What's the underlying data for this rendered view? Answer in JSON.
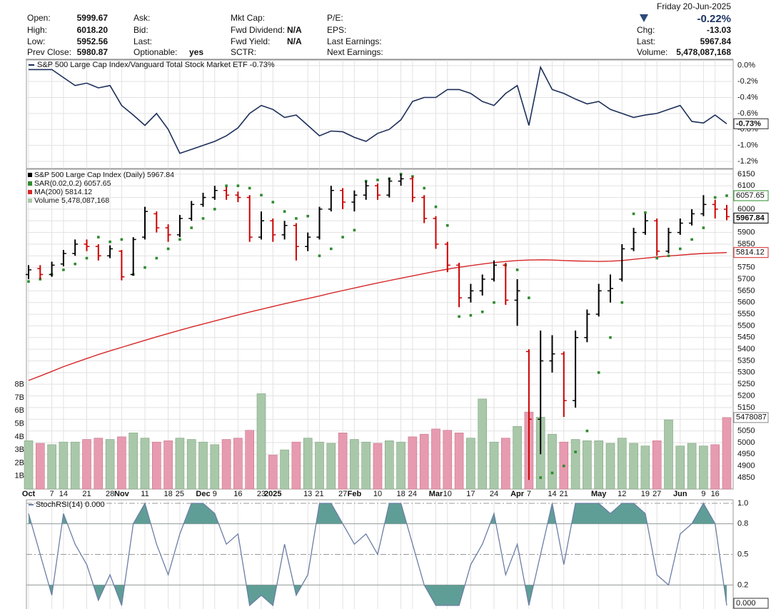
{
  "quote": {
    "columns": [
      [
        {
          "label": "Open:",
          "value": "5999.67"
        },
        {
          "label": "High:",
          "value": "6018.20"
        },
        {
          "label": "Low:",
          "value": "5952.56"
        },
        {
          "label": "Prev Close:",
          "value": "5980.87"
        }
      ],
      [
        {
          "label": "Ask:"
        },
        {
          "label": "Bid:"
        },
        {
          "label": "Last:"
        },
        {
          "label": "Optionable:",
          "value": "yes"
        }
      ],
      [
        {
          "label": "Mkt Cap:"
        },
        {
          "label": "Fwd Dividend:",
          "value": "N/A"
        },
        {
          "label": "Fwd Yield:",
          "value": "N/A"
        },
        {
          "label": "SCTR:"
        }
      ],
      [
        {
          "label": "P/E:"
        },
        {
          "label": "EPS:"
        },
        {
          "label": "Last Earnings:"
        },
        {
          "label": "Next Earnings:"
        }
      ]
    ],
    "weekday": "Friday",
    "date": "20-Jun-2025",
    "change_pct": "-0.22%",
    "fields": [
      {
        "label": "Chg:",
        "value": "-13.03"
      },
      {
        "label": "Last:",
        "value": "5967.84"
      },
      {
        "label": "Volume:",
        "value": "5,478,087,168"
      }
    ]
  },
  "chart_data": [
    {
      "type": "line",
      "series": [
        {
          "name": "S&P 500 Large Cap Index/Vanguard Total Stock Market ETF -0.73%",
          "color": "#1c2f5a",
          "end_label": "-0.73%",
          "values": [
            -0.05,
            -0.05,
            -0.05,
            -0.15,
            -0.25,
            -0.22,
            -0.28,
            -0.25,
            -0.5,
            -0.62,
            -0.75,
            -0.6,
            -0.8,
            -1.1,
            -1.05,
            -1.0,
            -0.95,
            -0.88,
            -0.78,
            -0.6,
            -0.5,
            -0.55,
            -0.65,
            -0.62,
            -0.75,
            -0.88,
            -0.82,
            -0.83,
            -0.9,
            -0.95,
            -0.85,
            -0.8,
            -0.68,
            -0.45,
            -0.4,
            -0.4,
            -0.3,
            -0.3,
            -0.35,
            -0.45,
            -0.5,
            -0.35,
            -0.25,
            -0.75,
            -0.02,
            -0.3,
            -0.35,
            -0.42,
            -0.48,
            -0.45,
            -0.55,
            -0.6,
            -0.65,
            -0.62,
            -0.6,
            -0.55,
            -0.5,
            -0.7,
            -0.72,
            -0.62,
            -0.73
          ]
        }
      ],
      "ylim": [
        -1.29,
        0.07
      ],
      "yticks": [
        {
          "value": 0,
          "label": "0.0%"
        },
        {
          "value": -0.2,
          "label": "-0.2%"
        },
        {
          "value": -0.4,
          "label": "-0.4%"
        },
        {
          "value": -0.6,
          "label": "-0.6%"
        },
        {
          "value": -0.8,
          "label": "-0.8%"
        },
        {
          "value": -1.0,
          "label": "-1.0%"
        },
        {
          "value": -1.2,
          "label": "-1.2%"
        }
      ],
      "grid": true
    },
    {
      "type": "ohlc",
      "categories": [
        "Oct",
        null,
        "7",
        "14",
        null,
        "21",
        null,
        "28",
        "Nov",
        null,
        "11",
        null,
        "18",
        "25",
        null,
        "Dec",
        "9",
        null,
        "16",
        null,
        "23",
        "2025",
        null,
        null,
        "13",
        "21",
        null,
        "27",
        "Feb",
        null,
        "10",
        null,
        "18",
        "24",
        null,
        "Mar",
        "10",
        null,
        "17",
        null,
        "24",
        null,
        "Apr",
        "7",
        null,
        "14",
        "21",
        null,
        null,
        "May",
        null,
        "12",
        null,
        "19",
        "27",
        null,
        "Jun",
        null,
        "9",
        "16",
        null
      ],
      "series": [
        {
          "name": "S&P 500 Large Cap Index (Daily) 5967.84",
          "type": "ohlc",
          "end_label": "5967.84",
          "colors": {
            "up": "#000000",
            "down": "#cc0000"
          },
          "open": [
            5720,
            5745,
            5720,
            5765,
            5810,
            5850,
            5840,
            5800,
            5820,
            5720,
            5880,
            5980,
            5920,
            5890,
            5960,
            6020,
            6050,
            6080,
            6060,
            6050,
            5880,
            5950,
            5890,
            5930,
            5840,
            5880,
            6000,
            6080,
            6030,
            6060,
            6100,
            6060,
            6120,
            6130,
            6050,
            5960,
            5850,
            5760,
            5620,
            5650,
            5700,
            5760,
            5610,
            5390,
            5100,
            5350,
            5380,
            5180,
            5450,
            5550,
            5650,
            5700,
            5830,
            5900,
            5950,
            5820,
            5900,
            5940,
            5980,
            6020,
            5999.67
          ],
          "high": [
            5760,
            5760,
            5775,
            5825,
            5870,
            5870,
            5850,
            5845,
            5825,
            5880,
            6010,
            5990,
            5935,
            5975,
            6035,
            6070,
            6100,
            6095,
            6075,
            6060,
            5990,
            5960,
            5950,
            5940,
            5900,
            6010,
            6100,
            6090,
            6080,
            6120,
            6110,
            6135,
            6150,
            6140,
            6060,
            5970,
            5860,
            5770,
            5680,
            5720,
            5780,
            5770,
            5700,
            5400,
            5480,
            5460,
            5390,
            5480,
            5570,
            5680,
            5720,
            5850,
            5920,
            5980,
            5960,
            5920,
            5960,
            6000,
            6060,
            6040,
            6018.2
          ],
          "low": [
            5700,
            5700,
            5710,
            5755,
            5800,
            5820,
            5780,
            5790,
            5695,
            5715,
            5870,
            5900,
            5860,
            5880,
            5950,
            6010,
            6040,
            6040,
            6030,
            5860,
            5870,
            5860,
            5870,
            5780,
            5820,
            5870,
            5990,
            6000,
            5990,
            6040,
            6040,
            6050,
            6100,
            6030,
            5940,
            5830,
            5730,
            5580,
            5600,
            5630,
            5690,
            5590,
            5500,
            4840,
            4950,
            5300,
            5110,
            5150,
            5430,
            5540,
            5600,
            5690,
            5820,
            5890,
            5800,
            5810,
            5890,
            5930,
            5970,
            5960,
            5952.56
          ],
          "close": [
            5740,
            5720,
            5760,
            5810,
            5850,
            5840,
            5800,
            5830,
            5710,
            5870,
            5990,
            5920,
            5890,
            5960,
            6020,
            6050,
            6080,
            6060,
            6050,
            5880,
            5950,
            5890,
            5930,
            5840,
            5880,
            6000,
            6080,
            6030,
            6060,
            6100,
            6060,
            6120,
            6130,
            6050,
            5960,
            5850,
            5760,
            5620,
            5650,
            5700,
            5760,
            5610,
            5650,
            5100,
            5350,
            5380,
            5180,
            5450,
            5550,
            5650,
            5660,
            5830,
            5900,
            5950,
            5820,
            5900,
            5940,
            5980,
            6020,
            6000,
            5967.84
          ]
        },
        {
          "name": "SAR(0.02,0.2) 6057.65",
          "type": "dots",
          "color": "#2e8b2e",
          "end_label": "6057.65",
          "values": [
            5690,
            5700,
            5720,
            5740,
            5765,
            5790,
            5880,
            5860,
            5870,
            5720,
            5750,
            5790,
            5830,
            5870,
            5920,
            5960,
            6000,
            6100,
            6100,
            6090,
            6060,
            6030,
            5990,
            5960,
            5970,
            5800,
            5830,
            5880,
            5910,
            6120,
            6125,
            6130,
            6150,
            6140,
            6090,
            6010,
            5930,
            5540,
            5545,
            5560,
            5600,
            5760,
            5740,
            5620,
            4850,
            4870,
            4900,
            4960,
            5050,
            5300,
            5450,
            5600,
            5980,
            5985,
            5790,
            5800,
            5830,
            5870,
            5920,
            6050,
            6057.65
          ]
        },
        {
          "name": "MA(200) 5814.12",
          "type": "line",
          "color": "#d62728",
          "end_label": "5814.12",
          "values": [
            5266,
            5285,
            5305,
            5325,
            5343,
            5360,
            5377,
            5393,
            5408,
            5423,
            5438,
            5453,
            5467,
            5481,
            5495,
            5508,
            5521,
            5534,
            5547,
            5559,
            5571,
            5583,
            5595,
            5606,
            5617,
            5628,
            5640,
            5651,
            5662,
            5673,
            5684,
            5694,
            5704,
            5714,
            5724,
            5734,
            5743,
            5751,
            5758,
            5765,
            5771,
            5776,
            5780,
            5782,
            5783,
            5782,
            5780,
            5778,
            5777,
            5776,
            5777,
            5780,
            5785,
            5790,
            5795,
            5799,
            5803,
            5807,
            5810,
            5812,
            5814.12
          ]
        },
        {
          "name": "Volume 5,478,087,168",
          "type": "bar",
          "axis": "y2",
          "end_label": "5478087",
          "colors": {
            "up": "#a9c8a9",
            "down": "#e79bb0"
          },
          "values": [
            3700000000,
            3500000000,
            3400000000,
            3600000000,
            3600000000,
            3800000000,
            3900000000,
            3800000000,
            4000000000,
            4300000000,
            3900000000,
            3600000000,
            3700000000,
            3900000000,
            3800000000,
            3600000000,
            3400000000,
            3800000000,
            3900000000,
            4500000000,
            7300000000,
            2600000000,
            3000000000,
            3600000000,
            3900000000,
            3600000000,
            3500000000,
            4300000000,
            3800000000,
            3600000000,
            3500000000,
            3700000000,
            3600000000,
            4000000000,
            4200000000,
            4600000000,
            4500000000,
            4300000000,
            3900000000,
            6900000000,
            3600000000,
            3900000000,
            4800000000,
            5900000000,
            5500000000,
            4200000000,
            3600000000,
            3800000000,
            3700000000,
            3700000000,
            3500000000,
            3900000000,
            3500000000,
            3300000000,
            3700000000,
            5300000000,
            3300000000,
            3500000000,
            3300000000,
            3400000000,
            5478087168
          ]
        }
      ],
      "ylim": [
        4801,
        6171
      ],
      "yticks": [
        4850,
        4900,
        4950,
        5000,
        5050,
        5100,
        5150,
        5200,
        5250,
        5300,
        5350,
        5400,
        5450,
        5500,
        5550,
        5600,
        5650,
        5700,
        5750,
        5800,
        5850,
        5900,
        5950,
        6000,
        6050,
        6100,
        6150
      ],
      "y2lim": [
        0,
        24500000000
      ],
      "y2ticks": [
        {
          "value": 1000000000,
          "label": "1B"
        },
        {
          "value": 2000000000,
          "label": "2B"
        },
        {
          "value": 3000000000,
          "label": "3B"
        },
        {
          "value": 4000000000,
          "label": "4B"
        },
        {
          "value": 5000000000,
          "label": "5B"
        },
        {
          "value": 6000000000,
          "label": "6B"
        },
        {
          "value": 7000000000,
          "label": "7B"
        },
        {
          "value": 8000000000,
          "label": "8B"
        }
      ],
      "grid": true
    },
    {
      "type": "stoch",
      "series": [
        {
          "name": "StochRSI(14) 0.000",
          "color": "#6b7ea6",
          "fill": "#5f9e96",
          "end_label": "0.000",
          "values": [
            0.9,
            0.5,
            0.1,
            0.9,
            0.6,
            0.4,
            0.05,
            0.3,
            0.0,
            0.8,
            1.0,
            0.6,
            0.3,
            0.7,
            1.0,
            1.0,
            0.9,
            0.6,
            0.7,
            0.0,
            0.1,
            0.0,
            0.6,
            0.1,
            0.3,
            1.0,
            1.0,
            0.8,
            0.6,
            0.7,
            0.5,
            1.0,
            1.0,
            0.6,
            0.2,
            0.0,
            0.0,
            0.0,
            0.4,
            0.6,
            0.9,
            0.3,
            0.6,
            0.0,
            0.5,
            1.0,
            0.4,
            1.0,
            1.0,
            1.0,
            0.9,
            1.0,
            1.0,
            0.9,
            0.3,
            0.2,
            0.7,
            0.8,
            1.0,
            0.8,
            0.0
          ]
        }
      ],
      "ylim": [
        -0.035,
        1.035
      ],
      "yticks": [
        {
          "value": 1,
          "label": "1.0"
        },
        0.8,
        0.5,
        0.2
      ],
      "bands": [
        0.2,
        0.8
      ],
      "grid": true
    }
  ]
}
